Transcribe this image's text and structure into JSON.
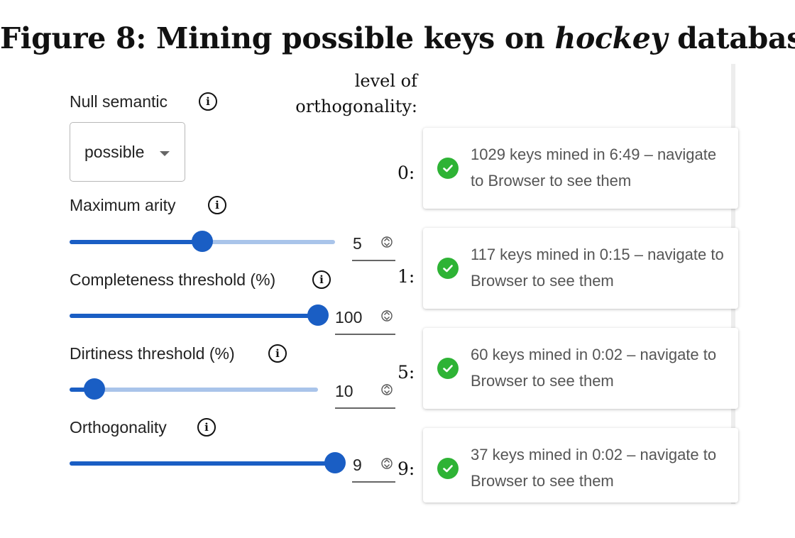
{
  "figure": {
    "title_prefix": "Figure 8: Mining possible keys on",
    "title_em": "hockey",
    "title_suffix": "database"
  },
  "controls": {
    "null_semantic": {
      "label": "Null semantic",
      "value": "possible",
      "icon": "info-icon"
    },
    "maximum_arity": {
      "label": "Maximum arity",
      "value": "5",
      "fill_fraction": 0.5,
      "icon": "info-icon"
    },
    "completeness_threshold": {
      "label": "Completeness threshold (%)",
      "value": "100",
      "fill_fraction": 1.0,
      "icon": "info-icon"
    },
    "dirtiness_threshold": {
      "label": "Dirtiness threshold (%)",
      "value": "10",
      "fill_fraction": 0.1,
      "icon": "info-icon"
    },
    "orthogonality": {
      "label": "Orthogonality",
      "value": "9",
      "fill_fraction": 1.0,
      "icon": "info-icon"
    }
  },
  "orthogonality_header": [
    "level of",
    "orthogonality:"
  ],
  "results": [
    {
      "level": "0:",
      "text": "1029 keys mined in 6:49 – navigate to Browser to see them",
      "status": "success"
    },
    {
      "level": "1:",
      "text": "117 keys mined in 0:15 – navigate to Browser to see them",
      "status": "success"
    },
    {
      "level": "5:",
      "text": "60 keys mined in 0:02 – navigate to Browser to see them",
      "status": "success"
    },
    {
      "level": "9:",
      "text": "37 keys mined in 0:02 – navigate to Browser to see them",
      "status": "success"
    }
  ],
  "colors": {
    "accent": "#1a5ec4",
    "track": "#a9c4ea",
    "success": "#2eb335"
  }
}
